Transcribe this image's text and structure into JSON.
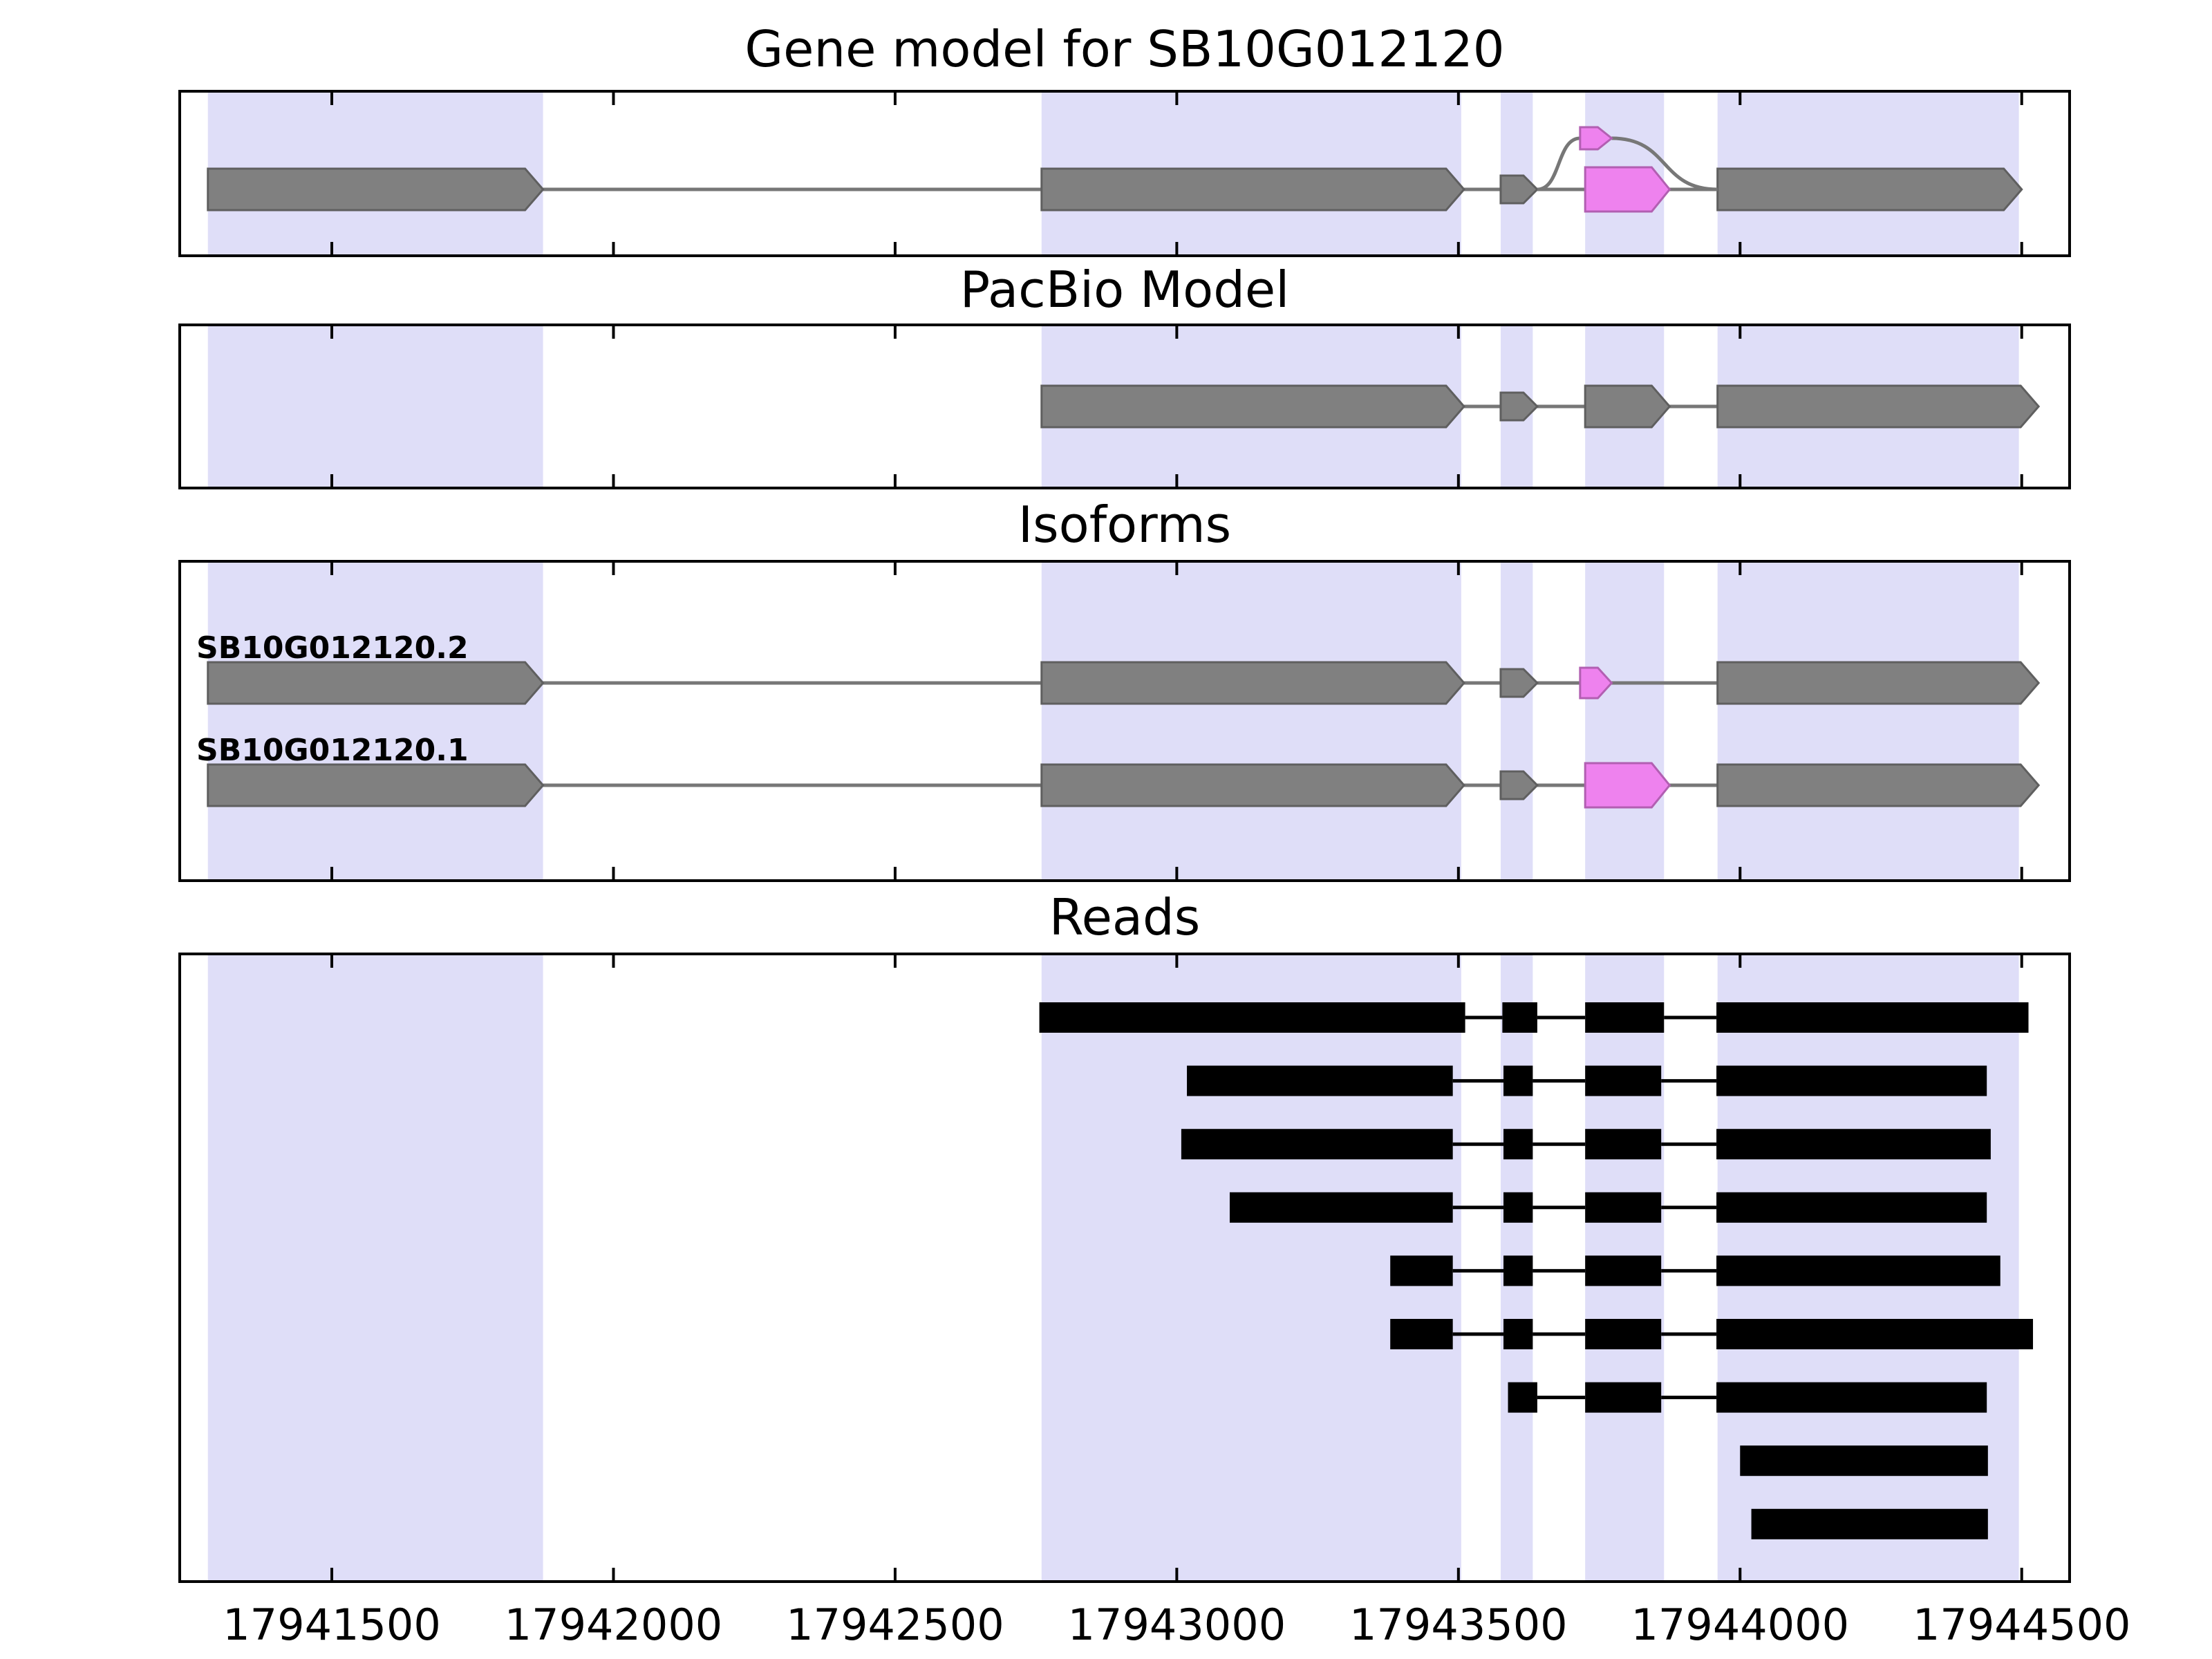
{
  "chart_data": {
    "type": "gene-structure-browser",
    "title": "Gene model for SB10G012120",
    "panels": [
      {
        "title": "Gene model for SB10G012120"
      },
      {
        "title": "PacBio Model"
      },
      {
        "title": "Isoforms"
      },
      {
        "title": "Reads"
      }
    ],
    "x_domain": [
      17941230,
      17944585
    ],
    "x_ticks": [
      17941500,
      17942000,
      17942500,
      17943000,
      17943500,
      17944000,
      17944500
    ],
    "highlight_regions": [
      [
        17941280,
        17941875
      ],
      [
        17942760,
        17943505
      ],
      [
        17943575,
        17943632
      ],
      [
        17943725,
        17943865
      ],
      [
        17943960,
        17944495
      ]
    ],
    "gene_model": {
      "exons": [
        {
          "start": 17941280,
          "end": 17941875,
          "style": "exon"
        },
        {
          "start": 17942760,
          "end": 17943510,
          "style": "exon"
        },
        {
          "start": 17943575,
          "end": 17943640,
          "style": "exon_small"
        },
        {
          "start": 17943725,
          "end": 17943875,
          "style": "alt_exon"
        },
        {
          "start": 17943960,
          "end": 17944500,
          "style": "exon"
        }
      ],
      "skipped_exon": {
        "start": 17943716,
        "end": 17943772,
        "style": "alt_exon_small"
      },
      "splice_arcs": [
        {
          "from": 17943640,
          "to": 17943716
        },
        {
          "from": 17943772,
          "to": 17943960
        }
      ]
    },
    "pacbio_model": {
      "exons": [
        {
          "start": 17942760,
          "end": 17943510,
          "style": "exon"
        },
        {
          "start": 17943575,
          "end": 17943640,
          "style": "exon_small"
        },
        {
          "start": 17943725,
          "end": 17943875,
          "style": "exon"
        },
        {
          "start": 17943960,
          "end": 17944530,
          "style": "exon"
        }
      ]
    },
    "isoforms": [
      {
        "name": "SB10G012120.2",
        "exons": [
          {
            "start": 17941280,
            "end": 17941875,
            "style": "exon"
          },
          {
            "start": 17942760,
            "end": 17943510,
            "style": "exon"
          },
          {
            "start": 17943575,
            "end": 17943640,
            "style": "exon_small"
          },
          {
            "start": 17943716,
            "end": 17943772,
            "style": "alt_exon_small"
          },
          {
            "start": 17943960,
            "end": 17944530,
            "style": "exon"
          }
        ]
      },
      {
        "name": "SB10G012120.1",
        "exons": [
          {
            "start": 17941280,
            "end": 17941875,
            "style": "exon"
          },
          {
            "start": 17942760,
            "end": 17943510,
            "style": "exon"
          },
          {
            "start": 17943575,
            "end": 17943640,
            "style": "exon_small"
          },
          {
            "start": 17943725,
            "end": 17943875,
            "style": "alt_exon"
          },
          {
            "start": 17943960,
            "end": 17944530,
            "style": "exon"
          }
        ]
      }
    ],
    "reads": [
      [
        [
          17942756,
          17943512
        ],
        [
          17943578,
          17943640
        ],
        [
          17943725,
          17943865
        ],
        [
          17943958,
          17944512
        ]
      ],
      [
        [
          17943018,
          17943490
        ],
        [
          17943580,
          17943632
        ],
        [
          17943725,
          17943860
        ],
        [
          17943958,
          17944438
        ]
      ],
      [
        [
          17943008,
          17943490
        ],
        [
          17943580,
          17943632
        ],
        [
          17943725,
          17943860
        ],
        [
          17943958,
          17944445
        ]
      ],
      [
        [
          17943094,
          17943490
        ],
        [
          17943580,
          17943632
        ],
        [
          17943725,
          17943860
        ],
        [
          17943958,
          17944438
        ]
      ],
      [
        [
          17943379,
          17943490
        ],
        [
          17943580,
          17943632
        ],
        [
          17943725,
          17943860
        ],
        [
          17943958,
          17944462
        ]
      ],
      [
        [
          17943379,
          17943490
        ],
        [
          17943580,
          17943632
        ],
        [
          17943725,
          17943860
        ],
        [
          17943958,
          17944520
        ]
      ],
      [
        [
          17943588,
          17943640
        ],
        [
          17943725,
          17943860
        ],
        [
          17943958,
          17944438
        ]
      ],
      [
        [
          17944000,
          17944440
        ]
      ],
      [
        [
          17944020,
          17944440
        ]
      ]
    ],
    "colors": {
      "highlight_band": "#dfdef8",
      "exon_fill": "#808080",
      "exon_stroke": "#5f5f5f",
      "alt_exon_fill": "#ee82ee",
      "alt_exon_stroke": "#b25fb2",
      "read_fill": "#000000",
      "intron_line": "#777777",
      "axis": "#000000"
    }
  }
}
